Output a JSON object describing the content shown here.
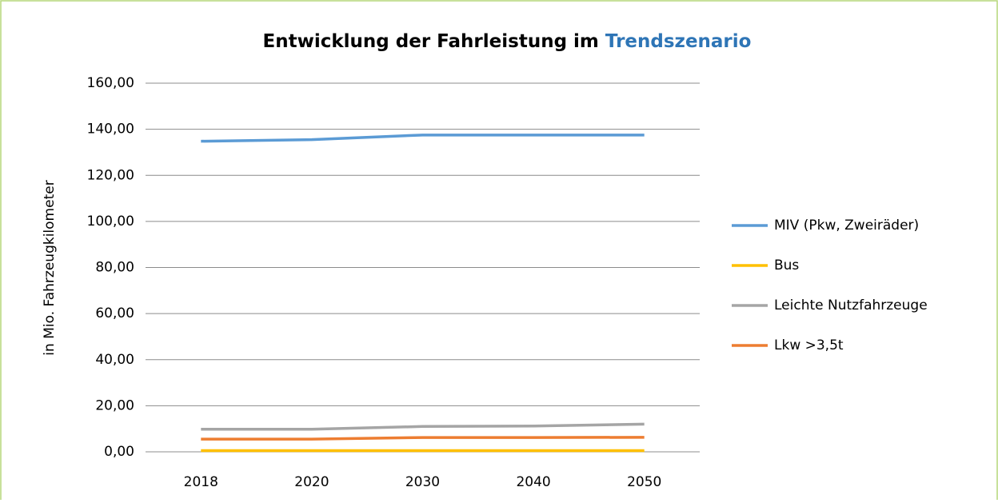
{
  "chart_data": {
    "type": "line",
    "title": [
      "Entwicklung der Fahrleistung im",
      "Trendszenario"
    ],
    "title_colors": [
      "#000000",
      "#2e75b6"
    ],
    "ylabel": "in Mio. Fahrzeugkilometer",
    "categories": [
      "2018",
      "2020",
      "2030",
      "2040",
      "2050"
    ],
    "series": [
      {
        "name": "MIV (Pkw, Zweiräder)",
        "color": "#5b9bd5",
        "values": [
          134.8,
          135.5,
          137.5,
          137.5,
          137.5
        ]
      },
      {
        "name": "Bus",
        "color": "#ffc000",
        "values": [
          0.5,
          0.5,
          0.5,
          0.5,
          0.5
        ]
      },
      {
        "name": "Leichte Nutzfahrzeuge",
        "color": "#a5a5a5",
        "values": [
          9.8,
          9.8,
          11.0,
          11.2,
          12.0
        ]
      },
      {
        "name": "Lkw >3,5t",
        "color": "#ed7d31",
        "values": [
          5.5,
          5.5,
          6.2,
          6.2,
          6.3
        ]
      }
    ],
    "ylim": [
      0,
      160
    ],
    "yticks": [
      {
        "value": 0,
        "label": "0,00"
      },
      {
        "value": 20,
        "label": "20,00"
      },
      {
        "value": 40,
        "label": "40,00"
      },
      {
        "value": 60,
        "label": "60,00"
      },
      {
        "value": 80,
        "label": "80,00"
      },
      {
        "value": 100,
        "label": "100,00"
      },
      {
        "value": 120,
        "label": "120,00"
      },
      {
        "value": 140,
        "label": "140,00"
      },
      {
        "value": 160,
        "label": "160,00"
      }
    ],
    "grid": true,
    "legend": "right"
  }
}
